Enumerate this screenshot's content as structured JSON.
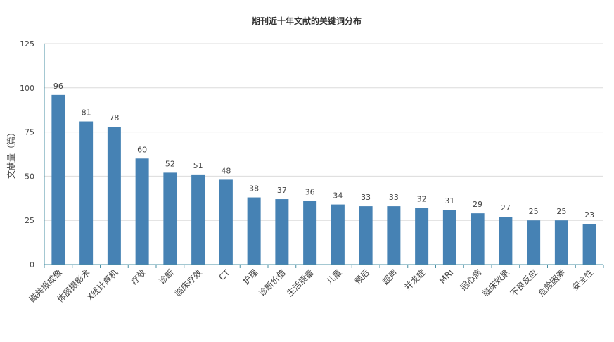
{
  "chart_data": {
    "type": "bar",
    "title": "期刊近十年文献的关键词分布",
    "ylabel": "文献量（篇）",
    "xlabel": "",
    "ylim": [
      0,
      125
    ],
    "yticks": [
      0,
      25,
      50,
      75,
      100,
      125
    ],
    "grid": true,
    "bar_color": "#4682b4",
    "categories": [
      "磁共振成像",
      "体层摄影术",
      "X线计算机",
      "疗效",
      "诊断",
      "临床疗效",
      "CT",
      "护理",
      "诊断价值",
      "生活质量",
      "儿童",
      "预后",
      "超声",
      "并发症",
      "MRI",
      "冠心病",
      "临床效果",
      "不良反应",
      "危险因素",
      "安全性"
    ],
    "values": [
      96,
      81,
      78,
      60,
      52,
      51,
      48,
      38,
      37,
      36,
      34,
      33,
      33,
      32,
      31,
      29,
      27,
      25,
      25,
      23
    ]
  }
}
